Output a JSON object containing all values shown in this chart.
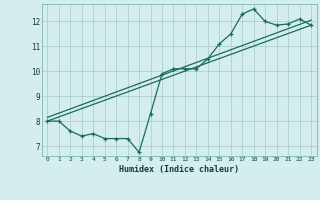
{
  "xlabel": "Humidex (Indice chaleur)",
  "bg_color": "#d4eeed",
  "grid_color": "#aed0ce",
  "line_color": "#1a6b5a",
  "xlim": [
    -0.5,
    23.5
  ],
  "ylim": [
    6.6,
    12.7
  ],
  "yticks": [
    7,
    8,
    9,
    10,
    11,
    12
  ],
  "xticks": [
    0,
    1,
    2,
    3,
    4,
    5,
    6,
    7,
    8,
    9,
    10,
    11,
    12,
    13,
    14,
    15,
    16,
    17,
    18,
    19,
    20,
    21,
    22,
    23
  ],
  "line1_x": [
    0,
    1,
    2,
    3,
    4,
    5,
    6,
    7,
    8,
    9,
    10,
    11,
    12,
    13,
    14,
    15,
    16,
    17,
    18,
    19,
    20,
    21,
    22,
    23
  ],
  "line1_y": [
    8.0,
    8.0,
    7.6,
    7.4,
    7.5,
    7.3,
    7.3,
    7.3,
    6.75,
    8.3,
    9.9,
    10.1,
    10.1,
    10.1,
    10.5,
    11.1,
    11.5,
    12.3,
    12.5,
    12.0,
    11.85,
    11.9,
    12.1,
    11.85
  ],
  "line2_x": [
    0,
    23
  ],
  "line2_y": [
    8.0,
    11.85
  ],
  "line3_x": [
    0,
    23
  ],
  "line3_y": [
    8.15,
    12.05
  ]
}
